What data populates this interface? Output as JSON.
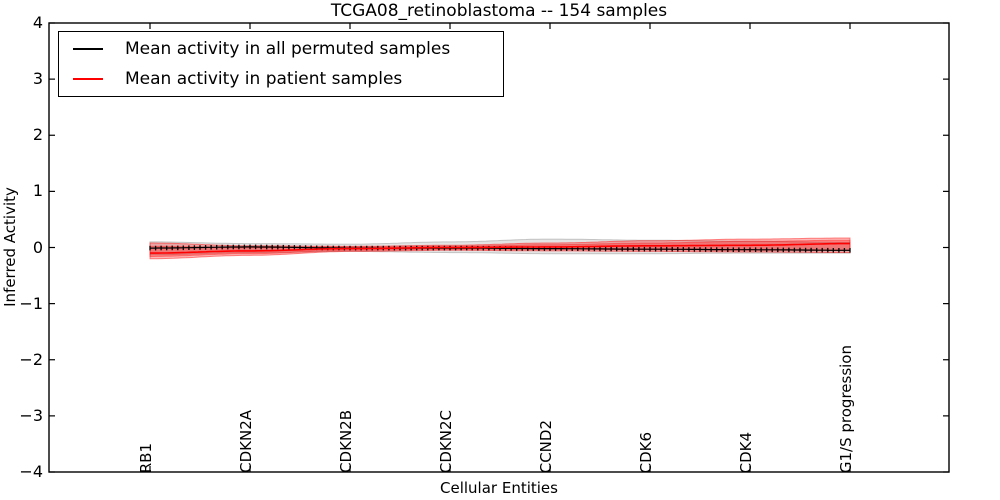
{
  "chart_data": {
    "type": "line",
    "title": "TCGA08_retinoblastoma -- 154 samples",
    "xlabel": "Cellular Entities",
    "ylabel": "Inferred Activity",
    "ylim": [
      -4,
      4
    ],
    "ytick_values": [
      4,
      3,
      2,
      1,
      0,
      -1,
      -2,
      -3,
      -4
    ],
    "ytick_labels": [
      "4",
      "3",
      "2",
      "1",
      "0",
      "−1",
      "−2",
      "−3",
      "−4"
    ],
    "categories": [
      "RB1",
      "CDKN2A",
      "CDKN2B",
      "CDKN2C",
      "CCND2",
      "CDK6",
      "CDK4",
      "G1/S progression"
    ],
    "grid": false,
    "legend": {
      "position": "upper left",
      "entries": [
        {
          "label": "Mean activity in all permuted samples",
          "color": "#000000"
        },
        {
          "label": "Mean activity in patient samples",
          "color": "#ff0000"
        }
      ]
    },
    "series": [
      {
        "name": "Mean activity in all permuted samples",
        "color": "#000000",
        "marker": "|",
        "line_width": 1.2,
        "values": [
          -0.01,
          0.01,
          -0.01,
          -0.01,
          -0.02,
          -0.03,
          -0.04,
          -0.05
        ]
      },
      {
        "name": "Mean activity in patient samples",
        "color": "#ff0000",
        "marker": "none",
        "line_width": 1.6,
        "values": [
          -0.1,
          -0.06,
          -0.02,
          0.0,
          0.01,
          0.03,
          0.04,
          0.07
        ]
      }
    ],
    "bands": [
      {
        "name": "permuted-samples-spread",
        "fill": "rgba(175,175,175,0.35)",
        "edge": "rgba(140,140,140,0.45)",
        "upper": [
          0.1,
          0.07,
          0.06,
          0.1,
          0.15,
          0.13,
          0.11,
          0.09
        ],
        "lower": [
          -0.13,
          -0.09,
          -0.07,
          -0.09,
          -0.11,
          -0.11,
          -0.1,
          -0.1
        ]
      },
      {
        "name": "patient-samples-spread-outer",
        "fill": "rgba(255,0,0,0.28)",
        "edge": "rgba(255,0,0,0.45)",
        "upper": [
          0.08,
          0.03,
          0.02,
          0.04,
          0.08,
          0.12,
          0.15,
          0.17
        ],
        "lower": [
          -0.2,
          -0.14,
          -0.07,
          -0.05,
          -0.06,
          -0.07,
          -0.08,
          -0.09
        ]
      },
      {
        "name": "patient-samples-spread-inner",
        "fill": "rgba(255,0,0,0.28)",
        "edge": "rgba(255,0,0,0.35)",
        "upper": [
          0.02,
          0.0,
          0.01,
          0.02,
          0.05,
          0.08,
          0.11,
          0.13
        ],
        "lower": [
          -0.16,
          -0.11,
          -0.05,
          -0.03,
          -0.03,
          -0.04,
          -0.05,
          -0.05
        ]
      }
    ],
    "n_marker_points": 127,
    "frame_color": "#000000",
    "background_color": "#ffffff"
  }
}
